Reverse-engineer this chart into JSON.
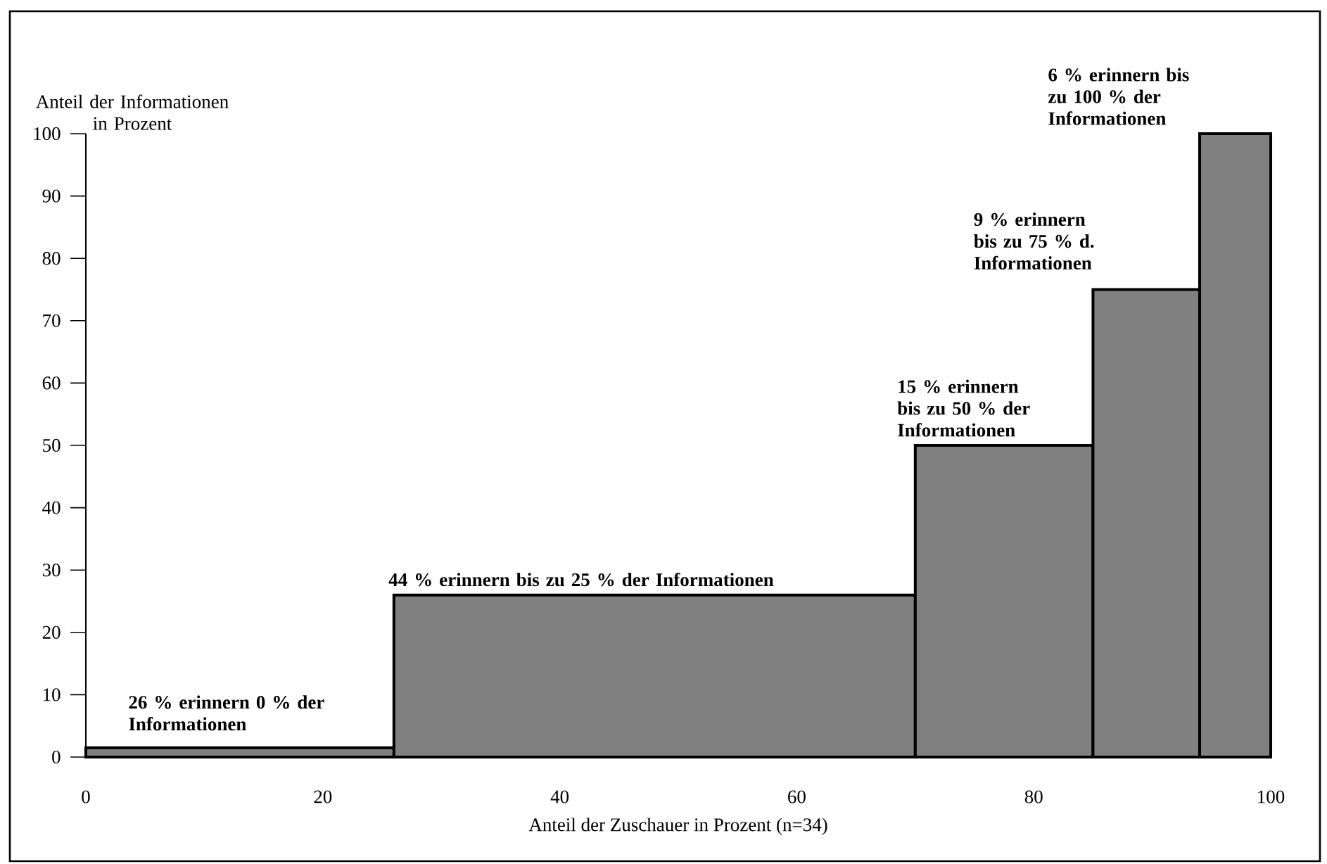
{
  "chart_data": {
    "type": "histogram",
    "xlabel": "Anteil der Zuschauer in Prozent (n=34)",
    "ylabel": "Anteil der Informationen in Prozent",
    "bins": [
      0,
      26,
      70,
      85,
      94,
      100
    ],
    "values": [
      1.5,
      26,
      50,
      75,
      100
    ],
    "color": "#808080",
    "xlim": [
      0,
      100
    ],
    "ylim": [
      0,
      100
    ],
    "xticks": [
      0,
      20,
      40,
      60,
      80,
      100
    ],
    "yticks": [
      0,
      10,
      20,
      30,
      40,
      50,
      60,
      70,
      80,
      90,
      100
    ],
    "grid": false,
    "annotations": [
      {
        "text": "26 % erinnern 0 % der Informationen",
        "x": 0,
        "y": 1.5
      },
      {
        "text": "44 % erinnern bis zu 25 % der Informationen",
        "x": 26,
        "y": 26
      },
      {
        "text": "15 % erinnern bis zu 50 % der Informationen",
        "x": 70,
        "y": 50
      },
      {
        "text": "9 % erinnern bis zu 75 % d. Informationen",
        "x": 85,
        "y": 75
      },
      {
        "text": "6 % erinnern bis zu 100 % der Informationen",
        "x": 94,
        "y": 100
      }
    ]
  }
}
